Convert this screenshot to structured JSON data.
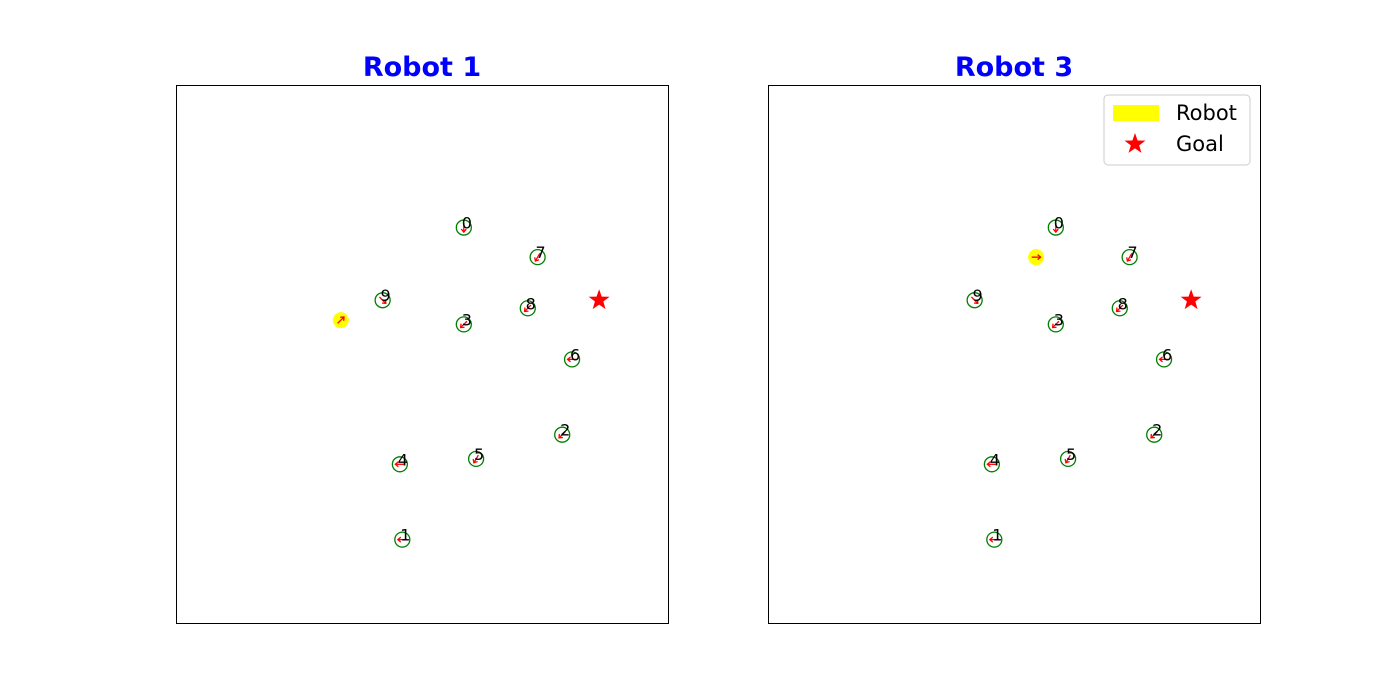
{
  "chart_data": [
    {
      "type": "scatter",
      "title": "Robot 1",
      "xlim": [
        0,
        10
      ],
      "ylim": [
        0,
        10
      ],
      "grid": false,
      "legend": null,
      "robot": {
        "x": 3.35,
        "y": 5.63,
        "heading_deg": 45
      },
      "goal": {
        "x": 8.6,
        "y": 6.0
      },
      "agents": [
        {
          "label": "0",
          "x": 5.85,
          "y": 7.35,
          "heading_deg": -90
        },
        {
          "label": "1",
          "x": 4.6,
          "y": 1.55,
          "heading_deg": 180
        },
        {
          "label": "2",
          "x": 7.85,
          "y": 3.5,
          "heading_deg": -135
        },
        {
          "label": "3",
          "x": 5.85,
          "y": 5.55,
          "heading_deg": -135
        },
        {
          "label": "4",
          "x": 4.55,
          "y": 2.95,
          "heading_deg": 180
        },
        {
          "label": "5",
          "x": 6.1,
          "y": 3.05,
          "heading_deg": -120
        },
        {
          "label": "6",
          "x": 8.05,
          "y": 4.9,
          "heading_deg": 180
        },
        {
          "label": "7",
          "x": 7.35,
          "y": 6.8,
          "heading_deg": -120
        },
        {
          "label": "8",
          "x": 7.15,
          "y": 5.85,
          "heading_deg": -135
        },
        {
          "label": "9",
          "x": 4.2,
          "y": 6.0,
          "heading_deg": -45
        }
      ]
    },
    {
      "type": "scatter",
      "title": "Robot 3",
      "xlim": [
        0,
        10
      ],
      "ylim": [
        0,
        10
      ],
      "grid": false,
      "legend": {
        "placement": "top-right",
        "entries": [
          {
            "label": "Robot",
            "color": "#ffff00"
          },
          {
            "label": "Goal",
            "color": "#ff0000"
          }
        ]
      },
      "robot": {
        "x": 5.45,
        "y": 6.8,
        "heading_deg": 0
      },
      "goal": {
        "x": 8.6,
        "y": 6.0
      },
      "agents": [
        {
          "label": "0",
          "x": 5.85,
          "y": 7.35,
          "heading_deg": -90
        },
        {
          "label": "1",
          "x": 4.6,
          "y": 1.55,
          "heading_deg": 180
        },
        {
          "label": "2",
          "x": 7.85,
          "y": 3.5,
          "heading_deg": -135
        },
        {
          "label": "3",
          "x": 5.85,
          "y": 5.55,
          "heading_deg": -135
        },
        {
          "label": "4",
          "x": 4.55,
          "y": 2.95,
          "heading_deg": 180
        },
        {
          "label": "5",
          "x": 6.1,
          "y": 3.05,
          "heading_deg": -120
        },
        {
          "label": "6",
          "x": 8.05,
          "y": 4.9,
          "heading_deg": 180
        },
        {
          "label": "7",
          "x": 7.35,
          "y": 6.8,
          "heading_deg": -120
        },
        {
          "label": "8",
          "x": 7.15,
          "y": 5.85,
          "heading_deg": -135
        },
        {
          "label": "9",
          "x": 4.2,
          "y": 6.0,
          "heading_deg": -45
        }
      ]
    }
  ],
  "colors": {
    "title": "#0000ff",
    "agent_ring": "#008000",
    "heading": "#ff0000",
    "robot": "#ffff00",
    "goal": "#ff0000"
  }
}
